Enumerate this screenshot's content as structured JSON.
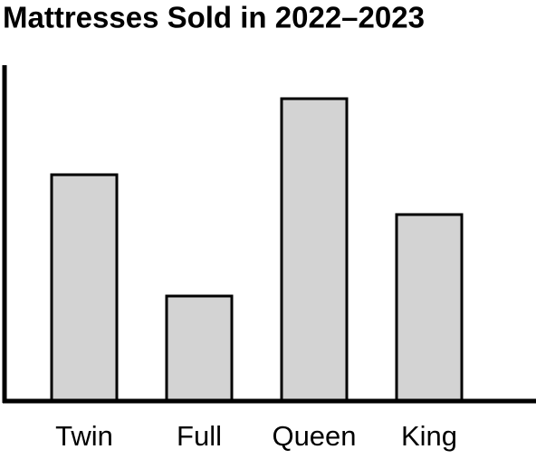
{
  "chart_data": {
    "type": "bar",
    "title": "Mattresses Sold in 2022–2023",
    "categories": [
      "Twin",
      "Full",
      "Queen",
      "King"
    ],
    "values": [
      250,
      116,
      334,
      206
    ],
    "color": "#d3d3d3",
    "ylim": [
      0,
      371
    ]
  }
}
